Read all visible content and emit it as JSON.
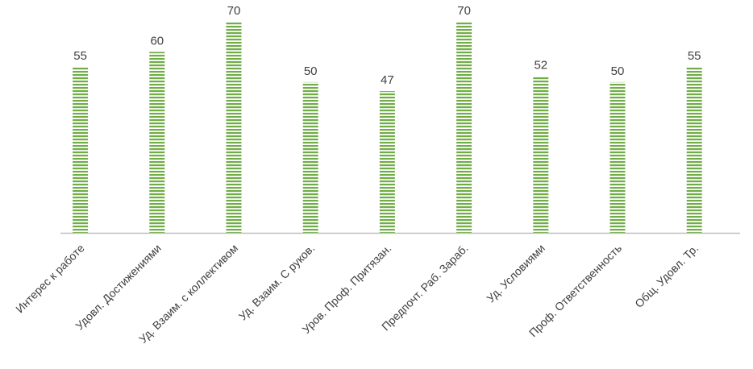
{
  "chart_data": {
    "type": "bar",
    "categories": [
      "Интерес к работе",
      "Удовл. Достижениями",
      "Уд. Взаим. с коллективом",
      "Уд. Взаим. С рукoв.",
      "Уров. Проф. Притязан.",
      "Предпочт. Раб. Зараб.",
      "Уд. Условиями",
      "Проф. Ответственность",
      "Общ. Удовл. Тр."
    ],
    "values": [
      55,
      60,
      70,
      50,
      47,
      70,
      52,
      50,
      55
    ],
    "ylim": [
      0,
      70
    ],
    "grid": false,
    "legend": "none",
    "data_labels": true,
    "colors": {
      "bar": "#70ad47",
      "stripe": "#ffffff",
      "axis": "#bfbfbf",
      "text": "#404040"
    }
  }
}
